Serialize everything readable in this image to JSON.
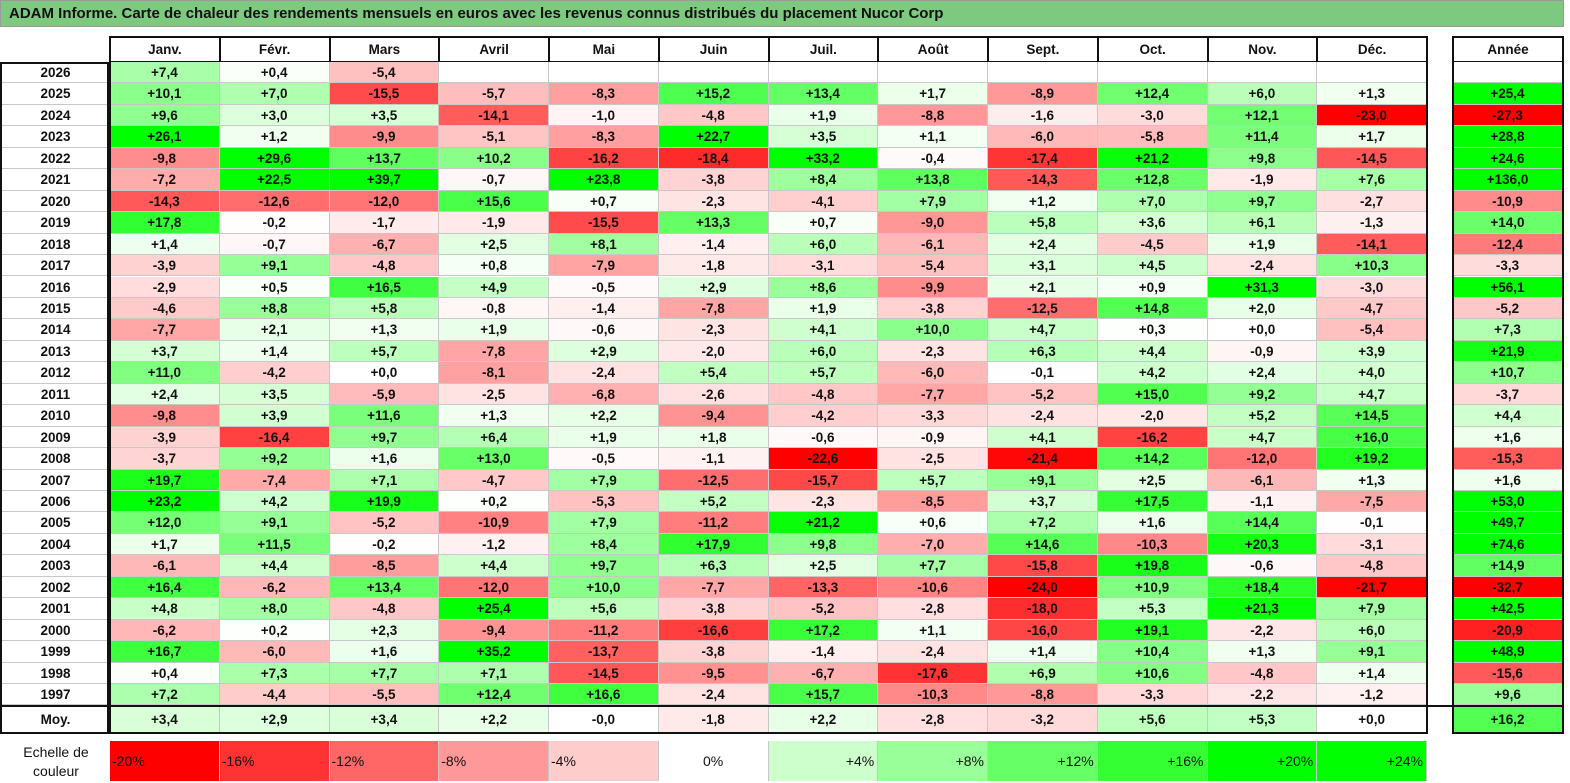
{
  "title": "ADAM Informe. Carte de chaleur des rendements mensuels en euros avec les revenus connus distribués du placement Nucor Corp",
  "chart_data": {
    "type": "heatmap",
    "title": "ADAM Informe. Carte de chaleur des rendements mensuels en euros avec les revenus connus distribués du placement Nucor Corp",
    "columns": [
      "Janv.",
      "Févr.",
      "Mars",
      "Avril",
      "Mai",
      "Juin",
      "Juil.",
      "Août",
      "Sept.",
      "Oct.",
      "Nov.",
      "Déc."
    ],
    "year_column_label": "Année",
    "rows": [
      {
        "year": "2026",
        "values": [
          "+7,4",
          "+0,4",
          "-5,4",
          "",
          "",
          "",
          "",
          "",
          "",
          "",
          "",
          ""
        ],
        "annual": ""
      },
      {
        "year": "2025",
        "values": [
          "+10,1",
          "+7,0",
          "-15,5",
          "-5,7",
          "-8,3",
          "+15,2",
          "+13,4",
          "+1,7",
          "-8,9",
          "+12,4",
          "+6,0",
          "+1,3"
        ],
        "annual": "+25,4"
      },
      {
        "year": "2024",
        "values": [
          "+9,6",
          "+3,0",
          "+3,5",
          "-14,1",
          "-1,0",
          "-4,8",
          "+1,9",
          "-8,8",
          "-1,6",
          "-3,0",
          "+12,1",
          "-23,0"
        ],
        "annual": "-27,3"
      },
      {
        "year": "2023",
        "values": [
          "+26,1",
          "+1,2",
          "-9,9",
          "-5,1",
          "-8,3",
          "+22,7",
          "+3,5",
          "+1,1",
          "-6,0",
          "-5,8",
          "+11,4",
          "+1,7"
        ],
        "annual": "+28,8"
      },
      {
        "year": "2022",
        "values": [
          "-9,8",
          "+29,6",
          "+13,7",
          "+10,2",
          "-16,2",
          "-18,4",
          "+33,2",
          "-0,4",
          "-17,4",
          "+21,2",
          "+9,8",
          "-14,5"
        ],
        "annual": "+24,6"
      },
      {
        "year": "2021",
        "values": [
          "-7,2",
          "+22,5",
          "+39,7",
          "-0,7",
          "+23,8",
          "-3,8",
          "+8,4",
          "+13,8",
          "-14,3",
          "+12,8",
          "-1,9",
          "+7,6"
        ],
        "annual": "+136,0"
      },
      {
        "year": "2020",
        "values": [
          "-14,3",
          "-12,6",
          "-12,0",
          "+15,6",
          "+0,7",
          "-2,3",
          "-4,1",
          "+7,9",
          "+1,2",
          "+7,0",
          "+9,7",
          "-2,7"
        ],
        "annual": "-10,9"
      },
      {
        "year": "2019",
        "values": [
          "+17,8",
          "-0,2",
          "-1,7",
          "-1,9",
          "-15,5",
          "+13,3",
          "+0,7",
          "-9,0",
          "+5,8",
          "+3,6",
          "+6,1",
          "-1,3"
        ],
        "annual": "+14,0"
      },
      {
        "year": "2018",
        "values": [
          "+1,4",
          "-0,7",
          "-6,7",
          "+2,5",
          "+8,1",
          "-1,4",
          "+6,0",
          "-6,1",
          "+2,4",
          "-4,5",
          "+1,9",
          "-14,1"
        ],
        "annual": "-12,4"
      },
      {
        "year": "2017",
        "values": [
          "-3,9",
          "+9,1",
          "-4,8",
          "+0,8",
          "-7,9",
          "-1,8",
          "-3,1",
          "-5,4",
          "+3,1",
          "+4,5",
          "-2,4",
          "+10,3"
        ],
        "annual": "-3,3"
      },
      {
        "year": "2016",
        "values": [
          "-2,9",
          "+0,5",
          "+16,5",
          "+4,9",
          "-0,5",
          "+2,9",
          "+8,6",
          "-9,9",
          "+2,1",
          "+0,9",
          "+31,3",
          "-3,0"
        ],
        "annual": "+56,1"
      },
      {
        "year": "2015",
        "values": [
          "-4,6",
          "+8,8",
          "+5,8",
          "-0,8",
          "-1,4",
          "-7,8",
          "+1,9",
          "-3,8",
          "-12,5",
          "+14,8",
          "+2,0",
          "-4,7"
        ],
        "annual": "-5,2"
      },
      {
        "year": "2014",
        "values": [
          "-7,7",
          "+2,1",
          "+1,3",
          "+1,9",
          "-0,6",
          "-2,3",
          "+4,1",
          "+10,0",
          "+4,7",
          "+0,3",
          "+0,0",
          "-5,4"
        ],
        "annual": "+7,3"
      },
      {
        "year": "2013",
        "values": [
          "+3,7",
          "+1,4",
          "+5,7",
          "-7,8",
          "+2,9",
          "-2,0",
          "+6,0",
          "-2,3",
          "+6,3",
          "+4,4",
          "-0,9",
          "+3,9"
        ],
        "annual": "+21,9"
      },
      {
        "year": "2012",
        "values": [
          "+11,0",
          "-4,2",
          "+0,0",
          "-8,1",
          "-2,4",
          "+5,4",
          "+5,7",
          "-6,0",
          "-0,1",
          "+4,2",
          "+2,4",
          "+4,0"
        ],
        "annual": "+10,7"
      },
      {
        "year": "2011",
        "values": [
          "+2,4",
          "+3,5",
          "-5,9",
          "-2,5",
          "-6,8",
          "-2,6",
          "-4,8",
          "-7,7",
          "-5,2",
          "+15,0",
          "+9,2",
          "+4,7"
        ],
        "annual": "-3,7"
      },
      {
        "year": "2010",
        "values": [
          "-9,8",
          "+3,9",
          "+11,6",
          "+1,3",
          "+2,2",
          "-9,4",
          "-4,2",
          "-3,3",
          "-2,4",
          "-2,0",
          "+5,2",
          "+14,5"
        ],
        "annual": "+4,4"
      },
      {
        "year": "2009",
        "values": [
          "-3,9",
          "-16,4",
          "+9,7",
          "+6,4",
          "+1,9",
          "+1,8",
          "-0,6",
          "-0,9",
          "+4,1",
          "-16,2",
          "+4,7",
          "+16,0"
        ],
        "annual": "+1,6"
      },
      {
        "year": "2008",
        "values": [
          "-3,7",
          "+9,2",
          "+1,6",
          "+13,0",
          "-0,5",
          "-1,1",
          "-22,6",
          "-2,5",
          "-21,4",
          "+14,2",
          "-12,0",
          "+19,2"
        ],
        "annual": "-15,3"
      },
      {
        "year": "2007",
        "values": [
          "+19,7",
          "-7,4",
          "+7,1",
          "-4,7",
          "+7,9",
          "-12,5",
          "-15,7",
          "+5,7",
          "+9,1",
          "+2,5",
          "-6,1",
          "+1,3"
        ],
        "annual": "+1,6"
      },
      {
        "year": "2006",
        "values": [
          "+23,2",
          "+4,2",
          "+19,9",
          "+0,2",
          "-5,3",
          "+5,2",
          "-2,3",
          "-8,5",
          "+3,7",
          "+17,5",
          "-1,1",
          "-7,5"
        ],
        "annual": "+53,0"
      },
      {
        "year": "2005",
        "values": [
          "+12,0",
          "+9,1",
          "-5,2",
          "-10,9",
          "+7,9",
          "-11,2",
          "+21,2",
          "+0,6",
          "+7,2",
          "+1,6",
          "+14,4",
          "-0,1"
        ],
        "annual": "+49,7"
      },
      {
        "year": "2004",
        "values": [
          "+1,7",
          "+11,5",
          "-0,2",
          "-1,2",
          "+8,4",
          "+17,9",
          "+9,8",
          "-7,0",
          "+14,6",
          "-10,3",
          "+20,3",
          "-3,1"
        ],
        "annual": "+74,6"
      },
      {
        "year": "2003",
        "values": [
          "-6,1",
          "+4,4",
          "-8,5",
          "+4,4",
          "+9,7",
          "+6,3",
          "+2,5",
          "+7,7",
          "-15,8",
          "+19,8",
          "-0,6",
          "-4,8"
        ],
        "annual": "+14,9"
      },
      {
        "year": "2002",
        "values": [
          "+16,4",
          "-6,2",
          "+13,4",
          "-12,0",
          "+10,0",
          "-7,7",
          "-13,3",
          "-10,6",
          "-24,0",
          "+10,9",
          "+18,4",
          "-21,7"
        ],
        "annual": "-32,7"
      },
      {
        "year": "2001",
        "values": [
          "+4,8",
          "+8,0",
          "-4,8",
          "+25,4",
          "+5,6",
          "-3,8",
          "-5,2",
          "-2,8",
          "-18,0",
          "+5,3",
          "+21,3",
          "+7,9"
        ],
        "annual": "+42,5"
      },
      {
        "year": "2000",
        "values": [
          "-6,2",
          "+0,2",
          "+2,3",
          "-9,4",
          "-11,2",
          "-16,6",
          "+17,2",
          "+1,1",
          "-16,0",
          "+19,1",
          "-2,2",
          "+6,0"
        ],
        "annual": "-20,9"
      },
      {
        "year": "1999",
        "values": [
          "+16,7",
          "-6,0",
          "+1,6",
          "+35,2",
          "-13,7",
          "-3,8",
          "-1,4",
          "-2,4",
          "+1,4",
          "+10,4",
          "+1,3",
          "+9,1"
        ],
        "annual": "+48,9"
      },
      {
        "year": "1998",
        "values": [
          "+0,4",
          "+7,3",
          "+7,7",
          "+7,1",
          "-14,5",
          "-9,5",
          "-6,7",
          "-17,6",
          "+6,9",
          "+10,6",
          "-4,8",
          "+1,4"
        ],
        "annual": "-15,6"
      },
      {
        "year": "1997",
        "values": [
          "+7,2",
          "-4,4",
          "-5,5",
          "+12,4",
          "+16,6",
          "-2,4",
          "+15,7",
          "-10,3",
          "-8,8",
          "-3,3",
          "-2,2",
          "-1,2"
        ],
        "annual": "+9,6"
      }
    ],
    "average": {
      "label": "Moy.",
      "values": [
        "+3,4",
        "+2,9",
        "+3,4",
        "+2,2",
        "-0,0",
        "-1,8",
        "+2,2",
        "-2,8",
        "-3,2",
        "+5,6",
        "+5,3",
        "+0,0"
      ],
      "annual": "+16,2"
    },
    "scale": {
      "label_line1": "Echelle de",
      "label_line2": "couleur",
      "stops": [
        "-20%",
        "-16%",
        "-12%",
        "-8%",
        "-4%",
        "0%",
        "+4%",
        "+8%",
        "+12%",
        "+16%",
        "+20%",
        "+24%"
      ]
    },
    "colors": {
      "negative": "#ff0000",
      "neutral": "#ffffff",
      "positive": "#00ff00",
      "title_bg": "#7dc97f"
    }
  }
}
